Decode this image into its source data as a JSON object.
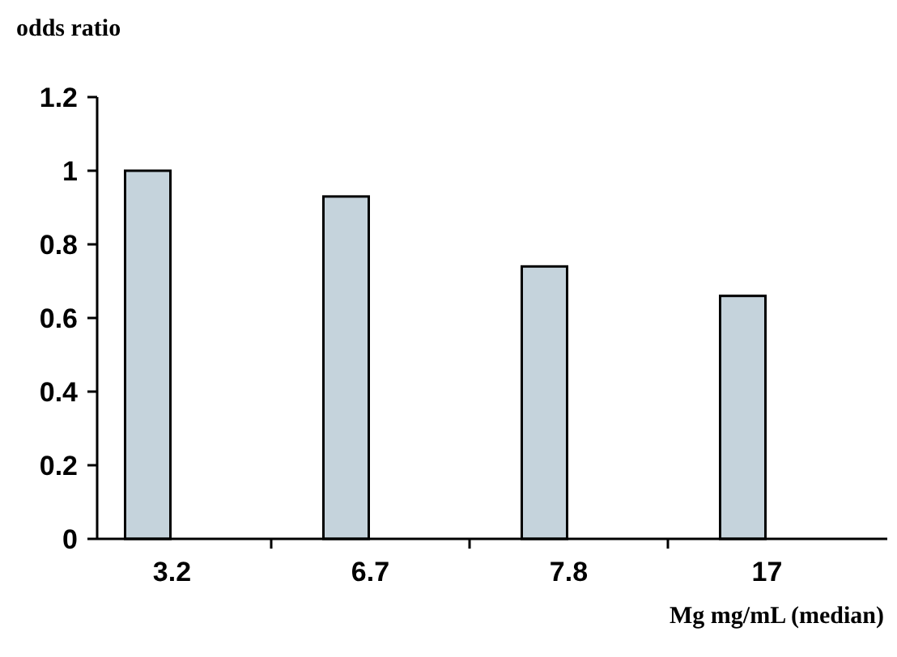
{
  "chart_data": {
    "type": "bar",
    "ylabel": "odds ratio",
    "xlabel": "Mg mg/mL (median)",
    "categories": [
      "3.2",
      "6.7",
      "7.8",
      "17"
    ],
    "values": [
      1,
      0.93,
      0.74,
      0.66
    ],
    "color": "#c5d3dc",
    "ylim": [
      0,
      1.2
    ],
    "yticks": [
      0,
      0.2,
      0.4,
      0.6,
      0.8,
      1,
      1.2
    ],
    "grid": false
  }
}
